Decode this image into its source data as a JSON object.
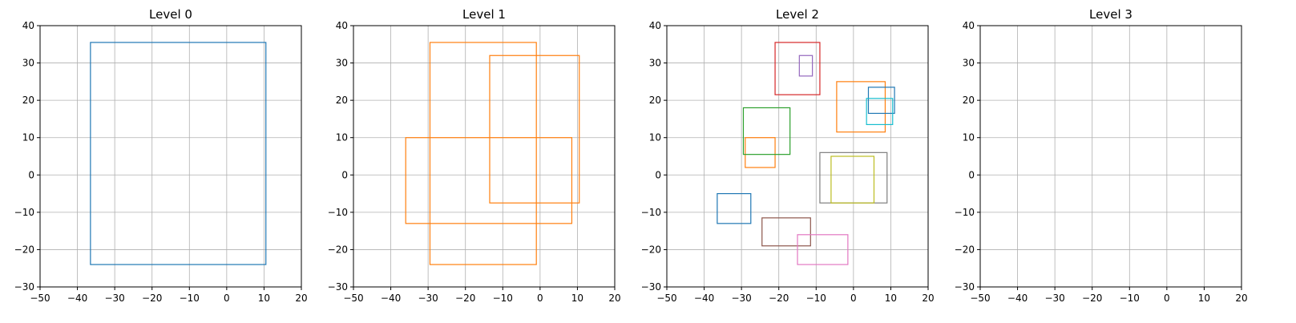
{
  "chart_data": [
    {
      "type": "rectangles",
      "title": "Level 0",
      "xlim": [
        -50,
        20
      ],
      "ylim": [
        -30,
        40
      ],
      "xticks": [
        "−50",
        "−40",
        "−30",
        "−20",
        "−10",
        "0",
        "10",
        "20"
      ],
      "yticks": [
        "−30",
        "−20",
        "−10",
        "0",
        "10",
        "20",
        "30",
        "40"
      ],
      "grid": true,
      "rects": [
        {
          "x0": -36.5,
          "x1": 10.5,
          "y0": -24,
          "y1": 35.5,
          "color": "#1f77b4"
        }
      ]
    },
    {
      "type": "rectangles",
      "title": "Level 1",
      "xlim": [
        -50,
        20
      ],
      "ylim": [
        -30,
        40
      ],
      "xticks": [
        "−50",
        "−40",
        "−30",
        "−20",
        "−10",
        "0",
        "10",
        "20"
      ],
      "yticks": [
        "−30",
        "−20",
        "−10",
        "0",
        "10",
        "20",
        "30",
        "40"
      ],
      "grid": true,
      "rects": [
        {
          "x0": -29.5,
          "x1": -1,
          "y0": -24,
          "y1": 35.5,
          "color": "#ff7f0e"
        },
        {
          "x0": -13.5,
          "x1": 10.5,
          "y0": -7.5,
          "y1": 32,
          "color": "#ff7f0e"
        },
        {
          "x0": -36,
          "x1": 8.5,
          "y0": -13,
          "y1": 10,
          "color": "#ff7f0e"
        }
      ]
    },
    {
      "type": "rectangles",
      "title": "Level 2",
      "xlim": [
        -50,
        20
      ],
      "ylim": [
        -30,
        40
      ],
      "xticks": [
        "−50",
        "−40",
        "−30",
        "−20",
        "−10",
        "0",
        "10",
        "20"
      ],
      "yticks": [
        "−30",
        "−20",
        "−10",
        "0",
        "10",
        "20",
        "30",
        "40"
      ],
      "grid": true,
      "rects": [
        {
          "x0": -36.5,
          "x1": -27.5,
          "y0": -13,
          "y1": -5,
          "color": "#1f77b4"
        },
        {
          "x0": -29,
          "x1": -21,
          "y0": 2,
          "y1": 10,
          "color": "#ff7f0e"
        },
        {
          "x0": -29.5,
          "x1": -17,
          "y0": 5.5,
          "y1": 18,
          "color": "#2ca02c"
        },
        {
          "x0": -21,
          "x1": -9,
          "y0": 21.5,
          "y1": 35.5,
          "color": "#d62728"
        },
        {
          "x0": -14.5,
          "x1": -11,
          "y0": 26.5,
          "y1": 32,
          "color": "#9467bd"
        },
        {
          "x0": -24.5,
          "x1": -11.5,
          "y0": -19,
          "y1": -11.5,
          "color": "#8c564b"
        },
        {
          "x0": -15,
          "x1": -1.5,
          "y0": -24,
          "y1": -16,
          "color": "#e377c2"
        },
        {
          "x0": -9,
          "x1": 9,
          "y0": -7.5,
          "y1": 6,
          "color": "#7f7f7f"
        },
        {
          "x0": -6,
          "x1": 5.5,
          "y0": -7.5,
          "y1": 5,
          "color": "#bcbd22"
        },
        {
          "x0": -4.5,
          "x1": 8.5,
          "y0": 11.5,
          "y1": 25,
          "color": "#ff7f0e"
        },
        {
          "x0": 4,
          "x1": 11,
          "y0": 16.5,
          "y1": 23.5,
          "color": "#1f77b4"
        },
        {
          "x0": 3.5,
          "x1": 10.5,
          "y0": 13.5,
          "y1": 20.5,
          "color": "#17becf"
        }
      ]
    },
    {
      "type": "rectangles",
      "title": "Level 3",
      "xlim": [
        -50,
        20
      ],
      "ylim": [
        -30,
        40
      ],
      "xticks": [
        "−50",
        "−40",
        "−30",
        "−20",
        "−10",
        "0",
        "10",
        "20"
      ],
      "yticks": [
        "−30",
        "−20",
        "−10",
        "0",
        "10",
        "20",
        "30",
        "40"
      ],
      "grid": true,
      "rects": []
    }
  ]
}
